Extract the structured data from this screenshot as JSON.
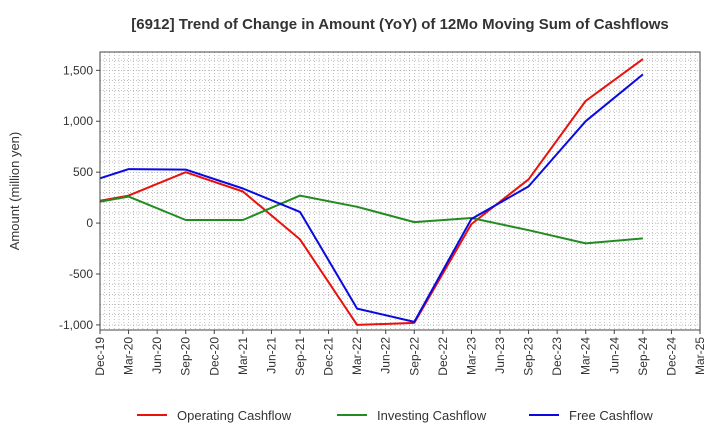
{
  "chart_data": {
    "type": "line",
    "title": "[6912]  Trend of Change in Amount (YoY) of 12Mo Moving Sum of Cashflows",
    "xlabel": "",
    "ylabel": "Amount (million yen)",
    "ylim": [
      -1050,
      1680
    ],
    "yticks": [
      -1000,
      -500,
      0,
      500,
      1000,
      1500
    ],
    "ytick_labels": [
      "-1,000",
      "-500",
      "0",
      "500",
      "1,000",
      "1,500"
    ],
    "categories": [
      "Dec-19",
      "Mar-20",
      "Jun-20",
      "Sep-20",
      "Dec-20",
      "Mar-21",
      "Jun-21",
      "Sep-21",
      "Dec-21",
      "Mar-22",
      "Jun-22",
      "Sep-22",
      "Dec-22",
      "Mar-23",
      "Jun-23",
      "Sep-23",
      "Dec-23",
      "Mar-24",
      "Jun-24",
      "Sep-24",
      "Dec-24",
      "Mar-25"
    ],
    "grid": true,
    "legend_position": "bottom",
    "series": [
      {
        "name": "Operating Cashflow",
        "color": "#e8120c",
        "values": [
          220,
          270,
          null,
          500,
          null,
          310,
          null,
          -160,
          null,
          -1000,
          null,
          -980,
          null,
          -10,
          null,
          430,
          null,
          1200,
          null,
          1610,
          null,
          null
        ]
      },
      {
        "name": "Investing Cashflow",
        "color": "#228b22",
        "values": [
          210,
          260,
          null,
          30,
          null,
          30,
          null,
          270,
          null,
          160,
          null,
          10,
          null,
          50,
          null,
          -70,
          null,
          -200,
          null,
          -150,
          null,
          null
        ]
      },
      {
        "name": "Free Cashflow",
        "color": "#0a0ae0",
        "values": [
          440,
          530,
          null,
          525,
          null,
          340,
          null,
          110,
          null,
          -840,
          null,
          -970,
          null,
          40,
          null,
          360,
          null,
          1000,
          null,
          1460,
          null,
          null
        ]
      }
    ]
  }
}
